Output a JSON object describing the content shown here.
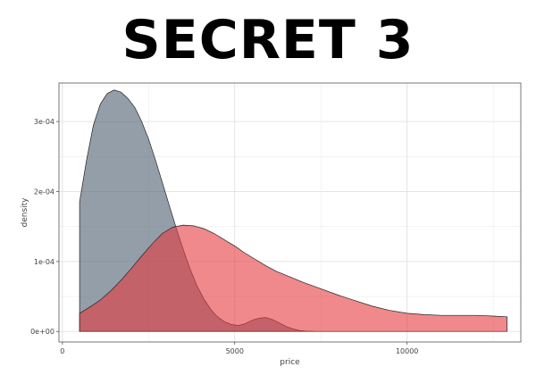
{
  "header": {
    "title": "SECRET 3"
  },
  "chart_data": {
    "type": "area",
    "title": "SECRET 3",
    "xlabel": "price",
    "ylabel": "density",
    "xlim": [
      -100,
      13300
    ],
    "ylim": [
      -1.5e-05,
      0.000355
    ],
    "x_ticks": [
      0,
      5000,
      10000
    ],
    "x_tick_labels": [
      "0",
      "5000",
      "10000"
    ],
    "y_ticks": [
      0,
      0.0001,
      0.0002,
      0.0003
    ],
    "y_tick_labels": [
      "0e+00",
      "1e-04",
      "2e-04",
      "3e-04"
    ],
    "grid": true,
    "legend": "none",
    "series": [
      {
        "color": "#5a6a7a",
        "opacity": 0.65,
        "points": [
          [
            500,
            0.000185
          ],
          [
            700,
            0.000245
          ],
          [
            900,
            0.000295
          ],
          [
            1100,
            0.000325
          ],
          [
            1300,
            0.00034
          ],
          [
            1500,
            0.000345
          ],
          [
            1700,
            0.000342
          ],
          [
            1900,
            0.000333
          ],
          [
            2100,
            0.00032
          ],
          [
            2300,
            0.0003
          ],
          [
            2500,
            0.000275
          ],
          [
            2700,
            0.000245
          ],
          [
            2900,
            0.000213
          ],
          [
            3100,
            0.00018
          ],
          [
            3300,
            0.000148
          ],
          [
            3500,
            0.000118
          ],
          [
            3700,
            9e-05
          ],
          [
            3900,
            6.6e-05
          ],
          [
            4100,
            4.7e-05
          ],
          [
            4300,
            3.2e-05
          ],
          [
            4500,
            2.1e-05
          ],
          [
            4700,
            1.4e-05
          ],
          [
            4900,
            1e-05
          ],
          [
            5100,
            8.5e-06
          ],
          [
            5300,
            1.1e-05
          ],
          [
            5500,
            1.6e-05
          ],
          [
            5700,
            1.9e-05
          ],
          [
            5900,
            2e-05
          ],
          [
            6100,
            1.7e-05
          ],
          [
            6300,
            1.2e-05
          ],
          [
            6500,
            7e-06
          ],
          [
            6700,
            3.5e-06
          ],
          [
            6900,
            1.2e-06
          ],
          [
            7100,
            3e-07
          ],
          [
            7300,
            0.0
          ]
        ]
      },
      {
        "color": "#e53a3f",
        "opacity": 0.6,
        "points": [
          [
            500,
            2.6e-05
          ],
          [
            800,
            3.5e-05
          ],
          [
            1100,
            4.5e-05
          ],
          [
            1400,
            5.8e-05
          ],
          [
            1700,
            7.3e-05
          ],
          [
            2000,
            9e-05
          ],
          [
            2300,
            0.000108
          ],
          [
            2600,
            0.000125
          ],
          [
            2900,
            0.00014
          ],
          [
            3200,
            0.000149
          ],
          [
            3500,
            0.000152
          ],
          [
            3800,
            0.000151
          ],
          [
            4100,
            0.000147
          ],
          [
            4400,
            0.00014
          ],
          [
            4700,
            0.000131
          ],
          [
            5000,
            0.000122
          ],
          [
            5300,
            0.000112
          ],
          [
            5600,
            0.000103
          ],
          [
            5900,
            9.4e-05
          ],
          [
            6200,
            8.6e-05
          ],
          [
            6600,
            7.8e-05
          ],
          [
            7000,
            7e-05
          ],
          [
            7500,
            6.1e-05
          ],
          [
            8000,
            5.2e-05
          ],
          [
            8500,
            4.4e-05
          ],
          [
            9000,
            3.6e-05
          ],
          [
            9500,
            3e-05
          ],
          [
            10000,
            2.6e-05
          ],
          [
            10500,
            2.4e-05
          ],
          [
            11000,
            2.3e-05
          ],
          [
            11500,
            2.3e-05
          ],
          [
            12000,
            2.3e-05
          ],
          [
            12500,
            2.2e-05
          ],
          [
            12900,
            2.1e-05
          ]
        ]
      }
    ]
  }
}
